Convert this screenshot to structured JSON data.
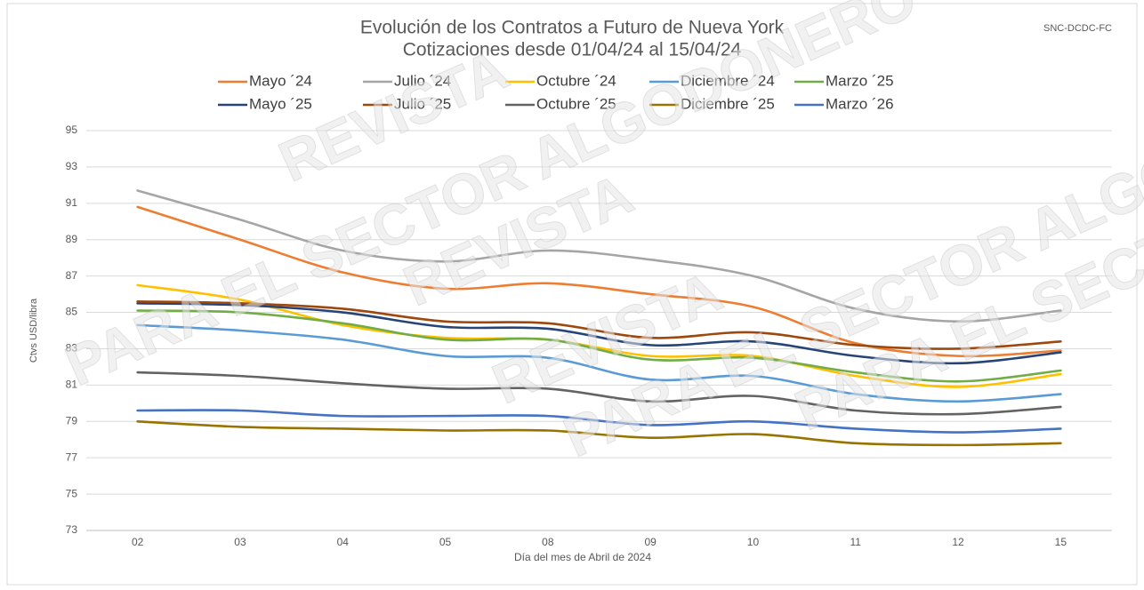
{
  "chart_data": {
    "type": "line",
    "title": "Evolución de los Contratos a Futuro de Nueva York",
    "subtitle": "Cotizaciones desde 01/04/24 al 15/04/24",
    "source": "SNC-DCDC-FC",
    "y_label": "Ctvs USD/libra",
    "x_label": "Día del mes de Abril de 2024",
    "categories": [
      "02",
      "03",
      "04",
      "05",
      "08",
      "09",
      "10",
      "11",
      "12",
      "15"
    ],
    "ylim": [
      73,
      95
    ],
    "yticks": [
      73,
      75,
      77,
      79,
      81,
      83,
      85,
      87,
      89,
      91,
      93,
      95
    ],
    "grid": true,
    "legend": "top",
    "watermarks": [
      "REVISTA",
      "PARA EL SECTOR ALGODONERO",
      "REVISTA",
      "PARA EL SECTOR ALGODONERO",
      "REVISTA",
      "PARA EL SECTOR ALGODONERO"
    ],
    "series": [
      {
        "name": "Mayo ´24",
        "color": "#ed7d31",
        "values": [
          90.8,
          89.0,
          87.2,
          86.3,
          86.6,
          86.0,
          85.3,
          83.3,
          82.6,
          82.9
        ]
      },
      {
        "name": "Julio ´24",
        "color": "#a5a5a5",
        "values": [
          91.7,
          90.1,
          88.4,
          87.8,
          88.4,
          87.9,
          87.0,
          85.2,
          84.5,
          85.1
        ]
      },
      {
        "name": "Octubre ´24",
        "color": "#ffc000",
        "values": [
          86.5,
          85.7,
          84.3,
          83.6,
          83.5,
          82.6,
          82.6,
          81.5,
          80.9,
          81.6
        ]
      },
      {
        "name": "Diciembre ´24",
        "color": "#5b9bd5",
        "values": [
          84.3,
          84.0,
          83.5,
          82.6,
          82.5,
          81.3,
          81.5,
          80.5,
          80.1,
          80.5
        ]
      },
      {
        "name": "Marzo ´25",
        "color": "#70ad47",
        "values": [
          85.1,
          85.0,
          84.4,
          83.5,
          83.5,
          82.4,
          82.5,
          81.7,
          81.2,
          81.8
        ]
      },
      {
        "name": "Mayo ´25",
        "color": "#264478",
        "values": [
          85.5,
          85.4,
          85.0,
          84.2,
          84.1,
          83.2,
          83.4,
          82.6,
          82.2,
          82.8
        ]
      },
      {
        "name": "Julio ´25",
        "color": "#9e480e",
        "values": [
          85.6,
          85.5,
          85.2,
          84.5,
          84.4,
          83.6,
          83.9,
          83.2,
          83.0,
          83.4
        ]
      },
      {
        "name": "Octubre ´25",
        "color": "#636363",
        "values": [
          81.7,
          81.5,
          81.1,
          80.8,
          80.8,
          80.1,
          80.4,
          79.6,
          79.4,
          79.8
        ]
      },
      {
        "name": "Diciembre ´25",
        "color": "#997300",
        "values": [
          79.0,
          78.7,
          78.6,
          78.5,
          78.5,
          78.1,
          78.3,
          77.8,
          77.7,
          77.8
        ]
      },
      {
        "name": "Marzo ´26",
        "color": "#4472c4",
        "values": [
          79.6,
          79.6,
          79.3,
          79.3,
          79.3,
          78.8,
          79.0,
          78.6,
          78.4,
          78.6
        ]
      }
    ]
  }
}
